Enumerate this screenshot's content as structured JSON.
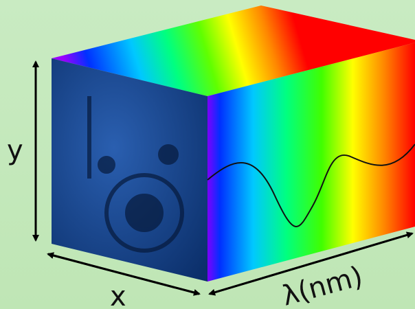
{
  "labels": {
    "y": "y",
    "x": "x",
    "wavelength": "λ(nm)"
  }
}
